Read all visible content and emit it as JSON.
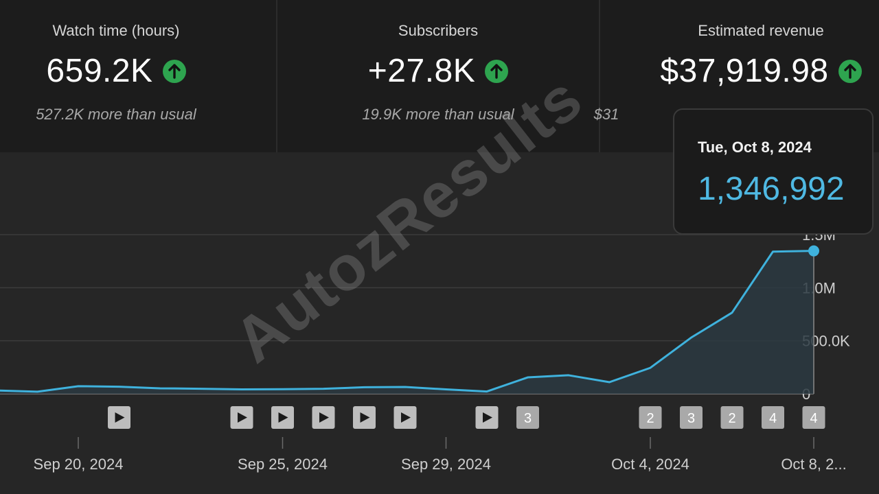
{
  "metrics": [
    {
      "label": "Watch time (hours)",
      "value": "659.2K",
      "note": "527.2K more than usual",
      "trend": "up"
    },
    {
      "label": "Subscribers",
      "value": "+27.8K",
      "note": "19.9K more than usual",
      "trend": "up"
    },
    {
      "label": "Estimated revenue",
      "value": "$37,919.98",
      "note": "$31",
      "trend": "up"
    }
  ],
  "tooltip": {
    "date": "Tue, Oct 8, 2024",
    "value": "1,346,992"
  },
  "watermark": "AutozResults",
  "colors": {
    "line": "#3fb2dd",
    "area": "#2b3a42",
    "up_badge": "#2ea44f",
    "tooltip_value": "#4fb9e3"
  },
  "chart_data": {
    "type": "area",
    "x": [
      "Sep 18, 2024",
      "Sep 19, 2024",
      "Sep 20, 2024",
      "Sep 21, 2024",
      "Sep 22, 2024",
      "Sep 23, 2024",
      "Sep 24, 2024",
      "Sep 25, 2024",
      "Sep 26, 2024",
      "Sep 27, 2024",
      "Sep 28, 2024",
      "Sep 29, 2024",
      "Sep 30, 2024",
      "Oct 1, 2024",
      "Oct 2, 2024",
      "Oct 3, 2024",
      "Oct 4, 2024",
      "Oct 5, 2024",
      "Oct 6, 2024",
      "Oct 7, 2024",
      "Oct 8, 2024"
    ],
    "y": [
      32000,
      20000,
      72000,
      67000,
      52000,
      48000,
      42000,
      44000,
      48000,
      62000,
      65000,
      42000,
      22000,
      155000,
      175000,
      110000,
      245000,
      530000,
      765000,
      1340000,
      1346992
    ],
    "ylim": [
      0,
      1500000
    ],
    "yticks": [
      {
        "value": 0,
        "label": "0"
      },
      {
        "value": 500000,
        "label": "500.0K"
      },
      {
        "value": 1000000,
        "label": "1.0M"
      },
      {
        "value": 1500000,
        "label": "1.5M"
      }
    ],
    "xticks": [
      {
        "date": "Sep 20, 2024",
        "label": "Sep 20, 2024"
      },
      {
        "date": "Sep 25, 2024",
        "label": "Sep 25, 2024"
      },
      {
        "date": "Sep 29, 2024",
        "label": "Sep 29, 2024"
      },
      {
        "date": "Oct 4, 2024",
        "label": "Oct 4, 2024"
      },
      {
        "date": "Oct 8, 2024",
        "label": "Oct 8, 2..."
      }
    ],
    "markers": [
      {
        "date": "Sep 21, 2024",
        "kind": "play"
      },
      {
        "date": "Sep 24, 2024",
        "kind": "play"
      },
      {
        "date": "Sep 25, 2024",
        "kind": "play"
      },
      {
        "date": "Sep 26, 2024",
        "kind": "play"
      },
      {
        "date": "Sep 27, 2024",
        "kind": "play"
      },
      {
        "date": "Sep 28, 2024",
        "kind": "play"
      },
      {
        "date": "Sep 30, 2024",
        "kind": "play"
      },
      {
        "date": "Oct 1, 2024",
        "kind": "count",
        "label": "3"
      },
      {
        "date": "Oct 4, 2024",
        "kind": "count",
        "label": "2"
      },
      {
        "date": "Oct 5, 2024",
        "kind": "count",
        "label": "3"
      },
      {
        "date": "Oct 6, 2024",
        "kind": "count",
        "label": "2"
      },
      {
        "date": "Oct 7, 2024",
        "kind": "count",
        "label": "4"
      },
      {
        "date": "Oct 8, 2024",
        "kind": "count",
        "label": "4"
      }
    ],
    "highlight": {
      "date": "Oct 8, 2024",
      "value": 1346992
    },
    "grid": true
  }
}
